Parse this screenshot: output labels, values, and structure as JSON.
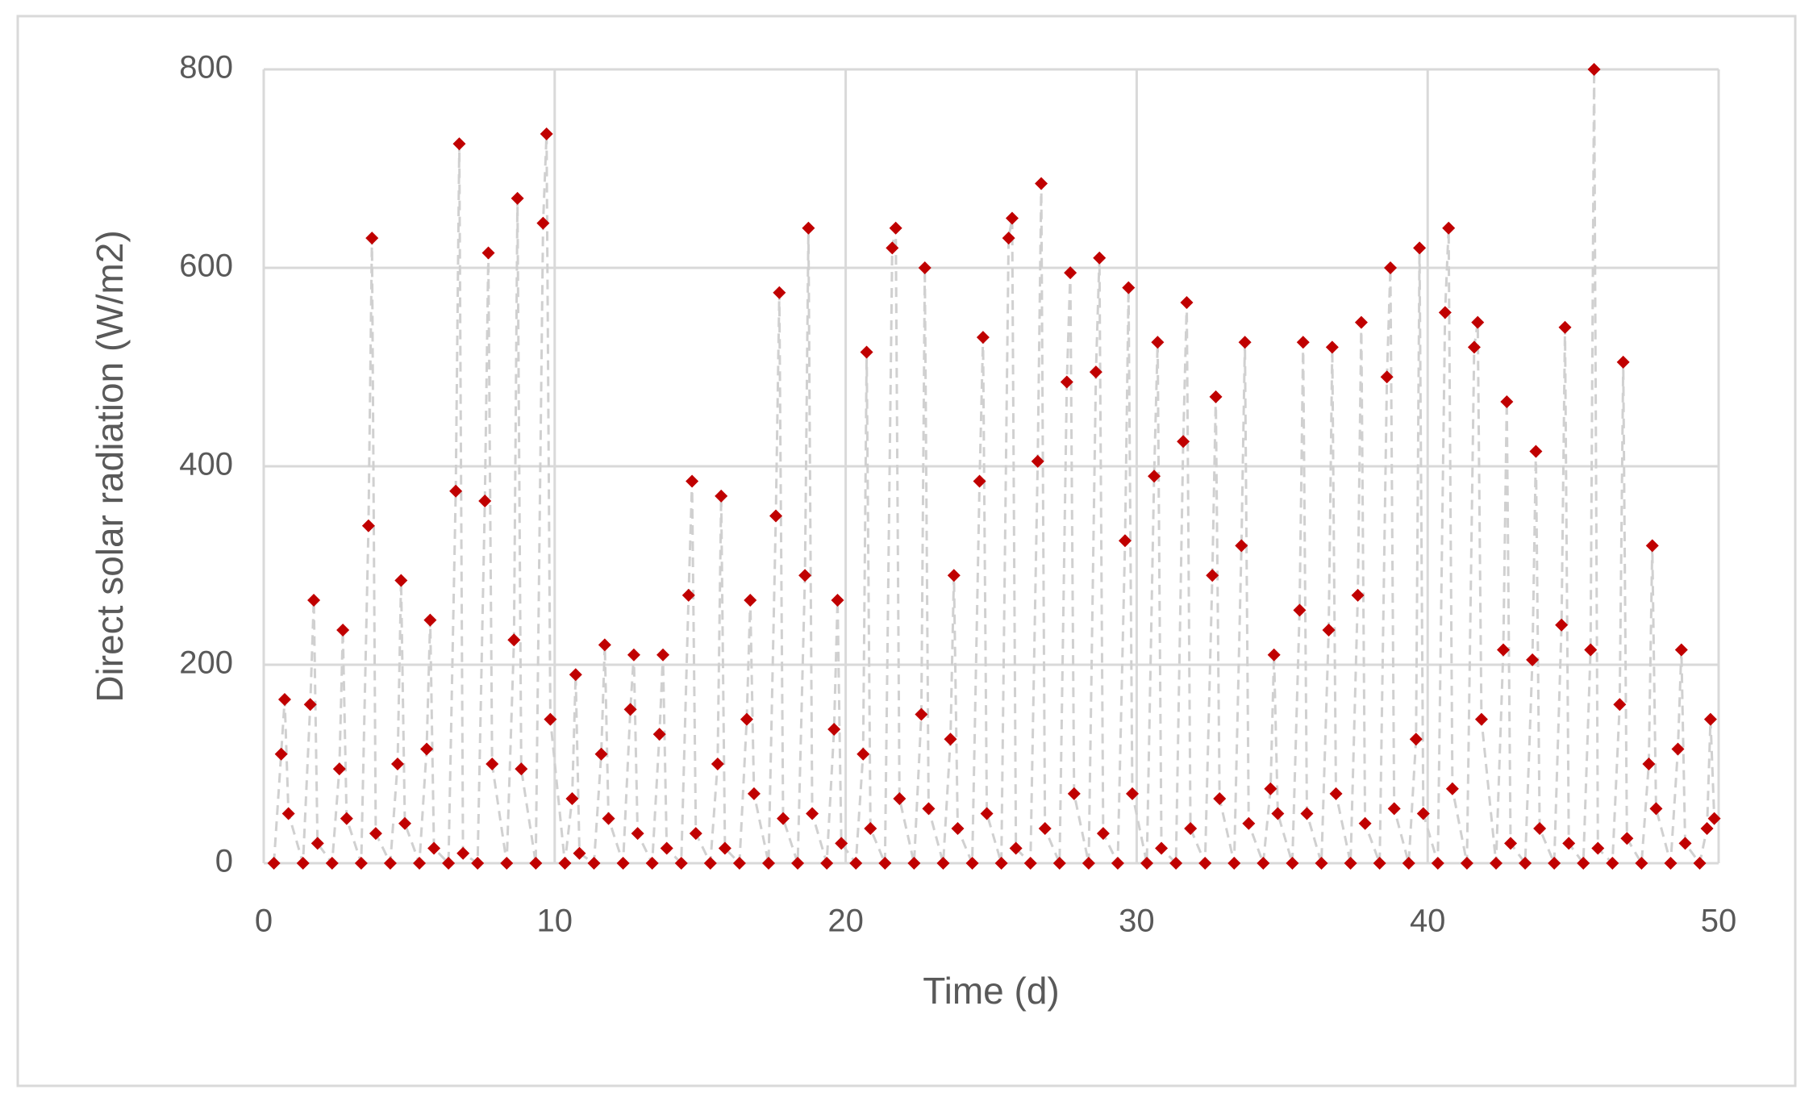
{
  "chart_data": {
    "type": "scatter",
    "x_label": "Time (d)",
    "y_label": "Direct  solar  radiation (W/m2)",
    "color": "#c00000",
    "line_color": "#d0d0d0",
    "grid": true,
    "xlim": [
      0,
      50
    ],
    "xticks": [
      0,
      10,
      20,
      30,
      40,
      50
    ],
    "ylim": [
      0,
      800
    ],
    "yticks": [
      0,
      200,
      400,
      600,
      800
    ],
    "x": [
      0.35,
      0.6,
      0.72,
      0.85,
      1.35,
      1.6,
      1.72,
      1.85,
      2.35,
      2.6,
      2.72,
      2.85,
      3.35,
      3.6,
      3.72,
      3.85,
      4.35,
      4.6,
      4.72,
      4.85,
      5.35,
      5.6,
      5.72,
      5.85,
      6.35,
      6.6,
      6.72,
      6.85,
      7.35,
      7.6,
      7.72,
      7.85,
      8.35,
      8.6,
      8.72,
      8.85,
      9.35,
      9.6,
      9.72,
      9.85,
      10.35,
      10.6,
      10.72,
      10.85,
      11.35,
      11.6,
      11.72,
      11.85,
      12.35,
      12.6,
      12.72,
      12.85,
      13.35,
      13.6,
      13.72,
      13.85,
      14.35,
      14.6,
      14.72,
      14.85,
      15.35,
      15.6,
      15.72,
      15.85,
      16.35,
      16.6,
      16.72,
      16.85,
      17.35,
      17.6,
      17.72,
      17.85,
      18.35,
      18.6,
      18.72,
      18.85,
      19.35,
      19.6,
      19.72,
      19.85,
      20.35,
      20.6,
      20.72,
      20.85,
      21.35,
      21.6,
      21.72,
      21.85,
      22.35,
      22.6,
      22.72,
      22.85,
      23.35,
      23.6,
      23.72,
      23.85,
      24.35,
      24.6,
      24.72,
      24.85,
      25.35,
      25.6,
      25.72,
      25.85,
      26.35,
      26.6,
      26.72,
      26.85,
      27.35,
      27.6,
      27.72,
      27.85,
      28.35,
      28.6,
      28.72,
      28.85,
      29.35,
      29.6,
      29.72,
      29.85,
      30.35,
      30.6,
      30.72,
      30.85,
      31.35,
      31.6,
      31.72,
      31.85,
      32.35,
      32.6,
      32.72,
      32.85,
      33.35,
      33.6,
      33.72,
      33.85,
      34.35,
      34.6,
      34.72,
      34.85,
      35.35,
      35.6,
      35.72,
      35.85,
      36.35,
      36.6,
      36.72,
      36.85,
      37.35,
      37.6,
      37.72,
      37.85,
      38.35,
      38.6,
      38.72,
      38.85,
      39.35,
      39.6,
      39.72,
      39.85,
      40.35,
      40.6,
      40.72,
      40.85,
      41.35,
      41.6,
      41.72,
      41.85,
      42.35,
      42.6,
      42.72,
      42.85,
      43.35,
      43.6,
      43.72,
      43.85,
      44.35,
      44.6,
      44.72,
      44.85,
      45.35,
      45.6,
      45.72,
      45.85,
      46.35,
      46.6,
      46.72,
      46.85,
      47.35,
      47.6,
      47.72,
      47.85,
      48.35,
      48.6,
      48.72,
      48.85,
      49.35,
      49.6,
      49.72,
      49.85
    ],
    "values": [
      0,
      110,
      165,
      50,
      0,
      160,
      265,
      20,
      0,
      95,
      235,
      45,
      0,
      340,
      630,
      30,
      0,
      100,
      285,
      40,
      0,
      115,
      245,
      15,
      0,
      375,
      725,
      10,
      0,
      365,
      615,
      100,
      0,
      225,
      670,
      95,
      0,
      645,
      735,
      145,
      0,
      65,
      190,
      10,
      0,
      110,
      220,
      45,
      0,
      155,
      210,
      30,
      0,
      130,
      210,
      15,
      0,
      270,
      385,
      30,
      0,
      100,
      370,
      15,
      0,
      145,
      265,
      70,
      0,
      350,
      575,
      45,
      0,
      290,
      640,
      50,
      0,
      135,
      265,
      20,
      0,
      110,
      515,
      35,
      0,
      620,
      640,
      65,
      0,
      150,
      600,
      55,
      0,
      125,
      290,
      35,
      0,
      385,
      530,
      50,
      0,
      630,
      650,
      15,
      0,
      405,
      685,
      35,
      0,
      485,
      595,
      70,
      0,
      495,
      610,
      30,
      0,
      325,
      580,
      70,
      0,
      390,
      525,
      15,
      0,
      425,
      565,
      35,
      0,
      290,
      470,
      65,
      0,
      320,
      525,
      40,
      0,
      75,
      210,
      50,
      0,
      255,
      525,
      50,
      0,
      235,
      520,
      70,
      0,
      270,
      545,
      40,
      0,
      490,
      600,
      55,
      0,
      125,
      620,
      50,
      0,
      555,
      640,
      75,
      0,
      520,
      545,
      145,
      0,
      215,
      465,
      20,
      0,
      205,
      415,
      35,
      0,
      240,
      540,
      20,
      0,
      215,
      800,
      15,
      0,
      160,
      505,
      25,
      0,
      100,
      320,
      55,
      0,
      115,
      215,
      20,
      0,
      35,
      145,
      45
    ]
  }
}
